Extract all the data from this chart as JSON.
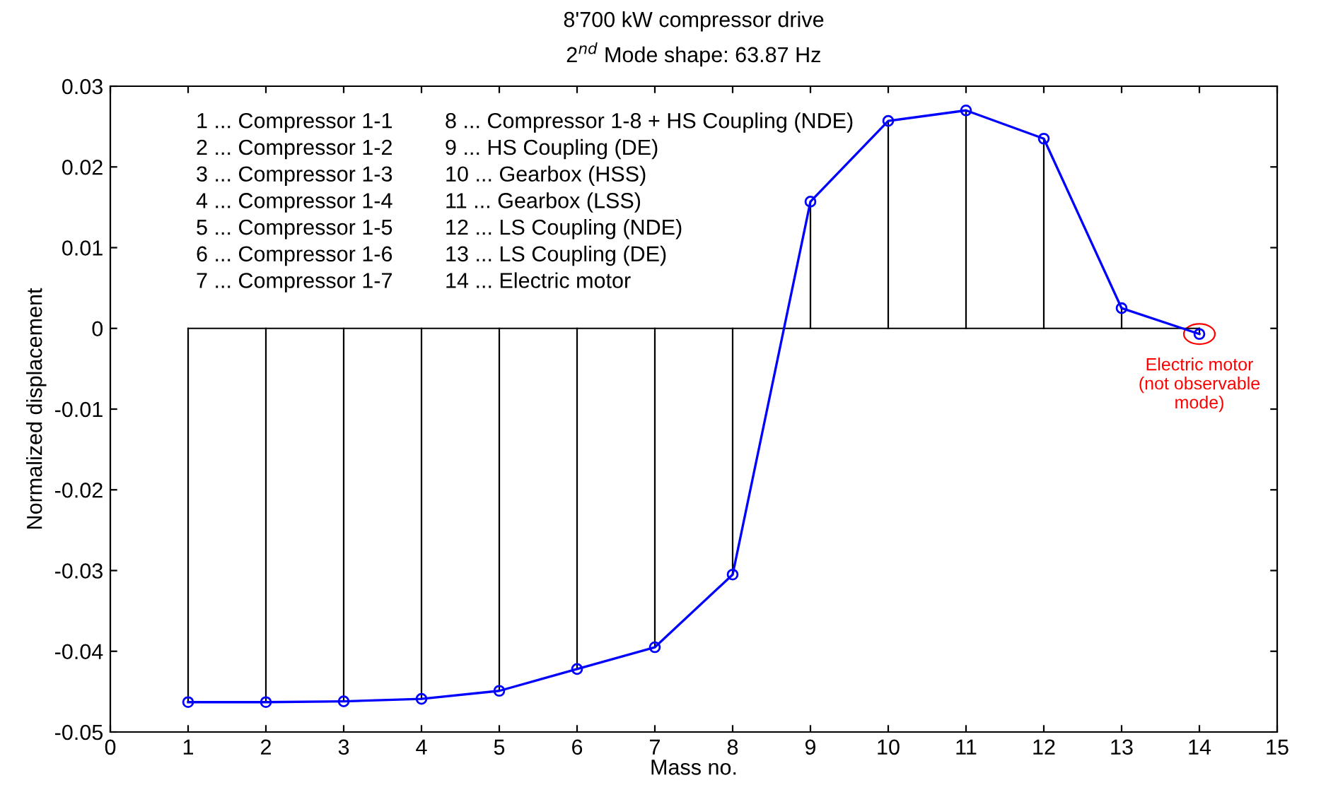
{
  "chart_data": {
    "type": "line",
    "title": "8'700 kW compressor drive",
    "subtitle": "2$^{nd}$ Mode shape: 63.87 Hz",
    "xlabel": "Mass no.",
    "ylabel": "Normalized displacement",
    "x": [
      1,
      2,
      3,
      4,
      5,
      6,
      7,
      8,
      9,
      10,
      11,
      12,
      13,
      14
    ],
    "series": [
      {
        "color": "#0000ff",
        "values": [
          -0.0463,
          -0.0463,
          -0.0462,
          -0.0459,
          -0.0449,
          -0.0422,
          -0.0395,
          -0.0305,
          0.0157,
          0.0257,
          0.027,
          0.0235,
          0.0025,
          -0.0007
        ]
      },
      {
        "type": "lollipop",
        "color": "#0000ff",
        "marker": "circle",
        "values": [
          -0.0463,
          -0.0463,
          -0.0462,
          -0.0459,
          -0.0449,
          -0.0422,
          -0.0395,
          -0.0305,
          0.0157,
          0.0257,
          0.027,
          0.0235,
          0.0025,
          -0.0007
        ]
      }
    ],
    "xlim": [
      0,
      15
    ],
    "xticks": [
      0,
      1,
      2,
      3,
      4,
      5,
      6,
      7,
      8,
      9,
      10,
      11,
      12,
      13,
      14,
      15
    ],
    "ylim": [
      -0.05,
      0.03
    ],
    "yticks": [
      -0.05,
      -0.04,
      -0.03,
      -0.02,
      -0.01,
      0,
      0.01,
      0.02,
      0.03
    ],
    "annotations": [
      "1 ... Compressor 1-1",
      "2 ... Compressor 1-2",
      "3 ... Compressor 1-3",
      "4 ... Compressor 1-4",
      "5 ... Compressor 1-5",
      "6 ... Compressor 1-6",
      "7 ... Compressor 1-7",
      "8 ... Compressor 1-8 + HS Coupling (NDE)",
      "9 ... HS Coupling (DE)",
      "10 ... Gearbox (HSS)",
      "11 ... Gearbox (LSS)",
      "12 ... LS Coupling (NDE)",
      "13 ... LS Coupling (DE)",
      "14 ... Electric motor",
      {
        "text": "Electric motor\n(not observable\nmode)",
        "x": 14,
        "y": -0.0007
      }
    ]
  }
}
